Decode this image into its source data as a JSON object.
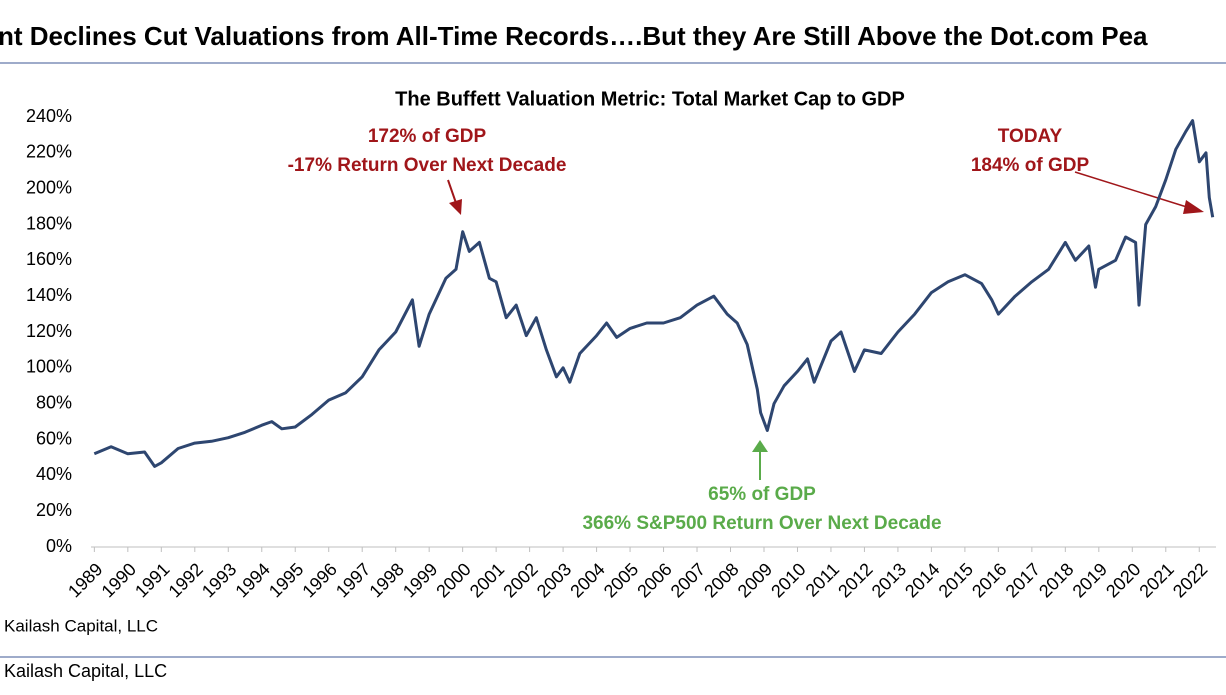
{
  "header": {
    "title": "nt Declines Cut Valuations from All-Time Records….But they Are Still Above the Dot.com Pea"
  },
  "chart_data": {
    "type": "line",
    "title": "The Buffett Valuation Metric: Total Market Cap to GDP",
    "xlim": [
      1988.9,
      2022.5
    ],
    "xticks": [
      1989,
      1990,
      1991,
      1992,
      1993,
      1994,
      1995,
      1996,
      1997,
      1998,
      1999,
      2000,
      2001,
      2002,
      2003,
      2004,
      2005,
      2006,
      2007,
      2008,
      2009,
      2010,
      2011,
      2012,
      2013,
      2014,
      2015,
      2016,
      2017,
      2018,
      2019,
      2020,
      2021,
      2022
    ],
    "ylim": [
      0,
      240
    ],
    "yticks": [
      {
        "value": 0,
        "label": "0%"
      },
      {
        "value": 20,
        "label": "20%"
      },
      {
        "value": 40,
        "label": "40%"
      },
      {
        "value": 60,
        "label": "60%"
      },
      {
        "value": 80,
        "label": "80%"
      },
      {
        "value": 100,
        "label": "100%"
      },
      {
        "value": 120,
        "label": "120%"
      },
      {
        "value": 140,
        "label": "140%"
      },
      {
        "value": 160,
        "label": "160%"
      },
      {
        "value": 180,
        "label": "180%"
      },
      {
        "value": 200,
        "label": "200%"
      },
      {
        "value": 220,
        "label": "220%"
      },
      {
        "value": 240,
        "label": "240%"
      }
    ],
    "series": [
      {
        "color": "#2e4670",
        "x": [
          1989.0,
          1989.5,
          1990.0,
          1990.5,
          1990.8,
          1991.0,
          1991.5,
          1992.0,
          1992.5,
          1993.0,
          1993.5,
          1994.0,
          1994.3,
          1994.6,
          1995.0,
          1995.5,
          1996.0,
          1996.5,
          1997.0,
          1997.5,
          1998.0,
          1998.5,
          1998.7,
          1999.0,
          1999.5,
          1999.8,
          2000.0,
          2000.2,
          2000.5,
          2000.8,
          2001.0,
          2001.3,
          2001.6,
          2001.9,
          2002.2,
          2002.5,
          2002.8,
          2003.0,
          2003.2,
          2003.5,
          2004.0,
          2004.3,
          2004.6,
          2005.0,
          2005.5,
          2006.0,
          2006.5,
          2007.0,
          2007.5,
          2007.9,
          2008.2,
          2008.5,
          2008.8,
          2008.9,
          2009.1,
          2009.3,
          2009.6,
          2010.0,
          2010.3,
          2010.5,
          2011.0,
          2011.3,
          2011.7,
          2012.0,
          2012.5,
          2013.0,
          2013.5,
          2014.0,
          2014.5,
          2015.0,
          2015.5,
          2015.8,
          2016.0,
          2016.5,
          2017.0,
          2017.5,
          2018.0,
          2018.3,
          2018.7,
          2018.9,
          2019.0,
          2019.5,
          2019.8,
          2020.1,
          2020.2,
          2020.4,
          2020.7,
          2021.0,
          2021.3,
          2021.6,
          2021.8,
          2022.0,
          2022.2,
          2022.3,
          2022.4
        ],
        "values": [
          52,
          56,
          52,
          53,
          45,
          47,
          55,
          58,
          59,
          61,
          64,
          68,
          70,
          66,
          67,
          74,
          82,
          86,
          95,
          110,
          120,
          138,
          112,
          130,
          150,
          155,
          176,
          165,
          170,
          150,
          148,
          128,
          135,
          118,
          128,
          110,
          95,
          100,
          92,
          108,
          118,
          125,
          117,
          122,
          125,
          125,
          128,
          135,
          140,
          130,
          125,
          113,
          88,
          75,
          65,
          80,
          90,
          98,
          105,
          92,
          115,
          120,
          98,
          110,
          108,
          120,
          130,
          142,
          148,
          152,
          147,
          138,
          130,
          140,
          148,
          155,
          170,
          160,
          168,
          145,
          155,
          160,
          173,
          170,
          135,
          180,
          190,
          205,
          222,
          232,
          238,
          215,
          220,
          195,
          184
        ]
      }
    ],
    "annotations": [
      {
        "color": "#a0161a",
        "lines": [
          "172% of GDP",
          "-17% Return Over Next Decade"
        ]
      },
      {
        "color": "#5aab4a",
        "lines": [
          "65% of GDP",
          "366% S&P500 Return Over Next Decade"
        ]
      },
      {
        "color": "#a0161a",
        "lines": [
          "TODAY",
          "184% of GDP"
        ]
      }
    ],
    "source": "Kailash Capital, LLC"
  },
  "footer": {
    "source": "Kailash Capital, LLC"
  }
}
